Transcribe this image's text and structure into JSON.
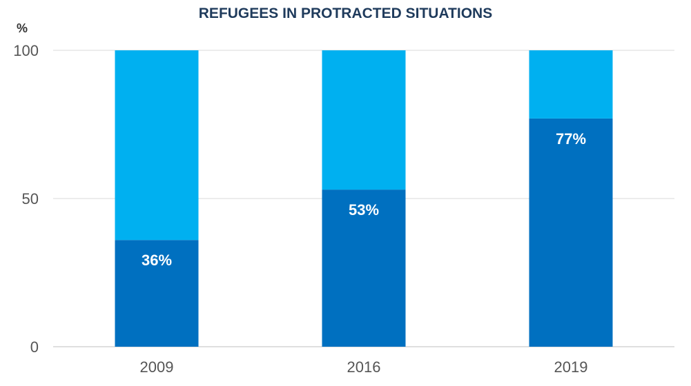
{
  "chart_data": {
    "type": "bar",
    "stacked": true,
    "title": "REFUGEES IN PROTRACTED SITUATIONS",
    "y_unit": "%",
    "categories": [
      "2009",
      "2016",
      "2019"
    ],
    "series": [
      {
        "values": [
          36,
          53,
          77
        ],
        "color": "#0070c0"
      },
      {
        "values": [
          64,
          47,
          23
        ],
        "color": "#00b0f0"
      }
    ],
    "data_labels": [
      "36%",
      "53%",
      "77%"
    ],
    "ylim": [
      0,
      100
    ],
    "yticks": [
      0,
      50,
      100
    ],
    "grid": true,
    "colors": {
      "title": "#1f3b5c",
      "grid": "#d9d9d9",
      "axis": "#bfbfbf"
    }
  }
}
